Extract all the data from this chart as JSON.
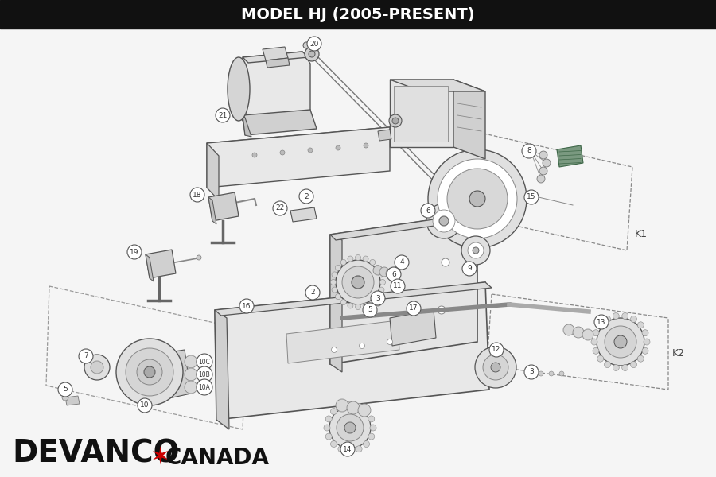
{
  "title": "MODEL HJ (2005-PRESENT)",
  "title_bg": "#111111",
  "title_color": "#ffffff",
  "bg_color": "#f5f5f5",
  "brand": "DEVANCO",
  "brand_color": "#111111",
  "star_color": "#cc0000",
  "canada_color": "#111111",
  "k1_label": "K1",
  "k2_label": "K2",
  "fig_w": 9.0,
  "fig_h": 6.0,
  "dpi": 100
}
